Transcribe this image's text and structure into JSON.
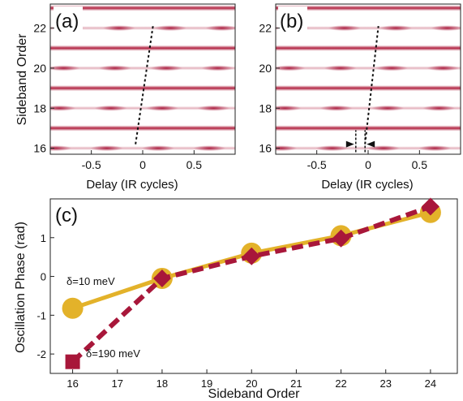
{
  "panel_a": {
    "label": "(a)",
    "xlabel": "Delay (IR cycles)",
    "ylabel": "Sideband Order",
    "xticks": [
      "-0.5",
      "0",
      "0.5"
    ],
    "yticks": [
      "16",
      "18",
      "20",
      "22"
    ]
  },
  "panel_b": {
    "label": "(b)",
    "xlabel": "Delay (IR cycles)",
    "yticks": [
      "16",
      "18",
      "20",
      "22"
    ],
    "xticks": [
      "-0.5",
      "0",
      "0.5"
    ]
  },
  "panel_c": {
    "label": "(c)",
    "xlabel": "Sideband Order",
    "ylabel": "Oscillation Phase (rad)",
    "xticks": [
      "16",
      "17",
      "18",
      "19",
      "20",
      "21",
      "22",
      "23",
      "24"
    ],
    "yticks": [
      "1",
      "0",
      "-1",
      "-2"
    ],
    "ann_10": "δ=10 meV",
    "ann_190": "δ=190 meV"
  },
  "colors": {
    "gold": "#e3b22a",
    "crimson": "#a8173a",
    "band": "#b0203f"
  },
  "chart_data": [
    {
      "type": "heatmap",
      "panel": "a",
      "x_range": [
        -0.9,
        0.9
      ],
      "y_range": [
        15.7,
        23.2
      ],
      "band_orders": [
        16,
        17,
        18,
        19,
        20,
        21,
        22,
        23
      ],
      "phase_line": {
        "x": [
          -0.07,
          0.1
        ],
        "y": [
          16.2,
          22.1
        ]
      }
    },
    {
      "type": "heatmap",
      "panel": "b",
      "x_range": [
        -0.9,
        0.9
      ],
      "y_range": [
        15.7,
        23.2
      ],
      "band_orders": [
        16,
        17,
        18,
        19,
        20,
        21,
        22,
        23
      ],
      "phase_line": {
        "x": [
          -0.03,
          0.1
        ],
        "y": [
          16.2,
          22.1
        ]
      },
      "marker_lines_x": [
        -0.12,
        -0.03
      ]
    },
    {
      "type": "line",
      "panel": "c",
      "xlim": [
        15.5,
        24.6
      ],
      "ylim": [
        -2.5,
        2.0
      ],
      "series": [
        {
          "name": "δ=10 meV",
          "x": [
            16,
            18,
            20,
            22,
            24
          ],
          "y": [
            -0.82,
            -0.05,
            0.6,
            1.05,
            1.65
          ]
        },
        {
          "name": "δ=190 meV",
          "x": [
            16,
            18,
            20,
            22,
            24
          ],
          "y": [
            -2.2,
            -0.05,
            0.52,
            0.98,
            1.8
          ]
        }
      ]
    }
  ]
}
